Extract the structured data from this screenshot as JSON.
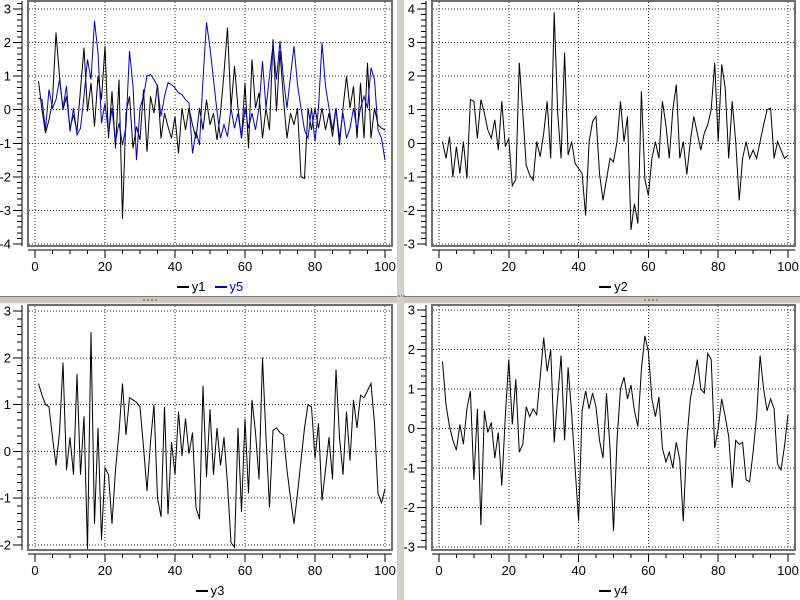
{
  "window": {
    "background": "#ffffff"
  },
  "splitters": {
    "bar_color": "#d5d1c8",
    "grip_color": "#948c80"
  },
  "axis_style": {
    "axis_color": "#000000",
    "grid_color": "#2f2f2f",
    "grid_style": "dotted",
    "canvas_border_color": "#6f6f6f",
    "tick_direction": "outward"
  },
  "chart_data": [
    {
      "id": "tl",
      "type": "line",
      "title": "",
      "xlabel": "",
      "ylabel": "",
      "grid": true,
      "legend_position": "bottom",
      "x_start": 1,
      "x_step": 1,
      "n_points": 100,
      "xlim": [
        -2,
        102
      ],
      "ylim": [
        -4.06,
        3.24
      ],
      "x_ticks": [
        0,
        20,
        40,
        60,
        80,
        100
      ],
      "y_ticks": [
        3,
        2,
        1,
        0,
        -1,
        -2,
        -3,
        -4
      ],
      "x_minor_step": 5,
      "y_minor_divisions": 6,
      "series": [
        {
          "name": "y1",
          "color": "#000000",
          "values": [
            0.85,
            0,
            -0.7,
            -0.3,
            0.25,
            2.3,
            1.0,
            0,
            0.4,
            -0.55,
            -0.15,
            -0.65,
            0.6,
            1.85,
            -0.05,
            0.8,
            -0.5,
            1.0,
            0.3,
            1.9,
            -0.85,
            0.55,
            -1.15,
            0.9,
            -3.25,
            -0.1,
            0.4,
            -1.15,
            -0.5,
            -0.9,
            0.6,
            -1.25,
            0.4,
            -0.1,
            0.75,
            -0.85,
            -0.1,
            -0.5,
            -0.85,
            -0.2,
            -1.3,
            0.05,
            -0.6,
            0.05,
            -0.45,
            -0.85,
            0.05,
            -0.6,
            0.3,
            -0.45,
            -0.1,
            -0.9,
            -0.1,
            1.1,
            2.45,
            0.05,
            1.3,
            0.05,
            -0.85,
            0.8,
            -1.15,
            1.5,
            0.05,
            0.5,
            -0.85,
            0.05,
            -0.6,
            2.1,
            -0.05,
            1.75,
            0.3,
            -0.85,
            -0.1,
            -0.45,
            0.05,
            -2.0,
            -2.05,
            0.05,
            -0.6,
            0.05,
            -0.55,
            0.05,
            -0.6,
            -0.1,
            -0.8,
            0.05,
            -1.05,
            0.05,
            1.0,
            0.05,
            0.7,
            -0.85,
            0.8,
            -0.85,
            1.4,
            -0.85,
            0.05,
            -0.45,
            -0.55,
            -0.6
          ]
        },
        {
          "name": "y5",
          "color": "#0000cc",
          "values": [
            0.35,
            0.3,
            -0.6,
            0.6,
            0.05,
            0.3,
            0.9,
            0.05,
            0.7,
            -0.65,
            0.05,
            -0.75,
            -0.55,
            0.4,
            1.5,
            0.9,
            2.65,
            1.7,
            -0.4,
            0.2,
            -0.7,
            0.05,
            -0.95,
            -0.4,
            -1.05,
            -0.5,
            1.75,
            0.7,
            -1.5,
            0.05,
            0.4,
            1.0,
            1.05,
            0.9,
            0.7,
            -0.2,
            0.4,
            0.8,
            0.75,
            0.65,
            0.5,
            0.45,
            0.3,
            0.2,
            -1.3,
            -0.65,
            -1.05,
            0.9,
            2.6,
            1.85,
            0.9,
            -0.05,
            -0.85,
            -0.45,
            -0.8,
            0.05,
            -0.55,
            -0.1,
            -0.85,
            0.05,
            -0.55,
            -0.1,
            -0.6,
            0.05,
            1.45,
            0.05,
            1.0,
            1.95,
            0.9,
            2.05,
            0.9,
            0.05,
            1.0,
            1.9,
            0.75,
            0.05,
            -0.6,
            -0.85,
            0.05,
            -0.95,
            0.05,
            2.0,
            0.7,
            0.05,
            -0.6,
            0.05,
            -0.85,
            -0.1,
            -0.85,
            -0.55,
            0.05,
            -0.6,
            0.05,
            0.4,
            0.05,
            1.25,
            0.9,
            -0.6,
            -0.85,
            -1.5
          ]
        }
      ]
    },
    {
      "id": "tr",
      "type": "line",
      "title": "",
      "xlabel": "",
      "ylabel": "",
      "grid": true,
      "legend_position": "bottom",
      "x_start": 1,
      "x_step": 1,
      "n_points": 100,
      "xlim": [
        -2,
        102
      ],
      "ylim": [
        -3.06,
        4.24
      ],
      "x_ticks": [
        0,
        20,
        40,
        60,
        80,
        100
      ],
      "y_ticks": [
        4,
        3,
        2,
        1,
        0,
        -1,
        -2,
        -3
      ],
      "x_minor_step": 5,
      "y_minor_divisions": 6,
      "series": [
        {
          "name": "y2",
          "color": "#000000",
          "values": [
            0.05,
            -0.45,
            0.2,
            -1.0,
            -0.1,
            -0.9,
            0.05,
            -1.05,
            1.3,
            1.25,
            0.15,
            1.3,
            0.9,
            0.4,
            0.15,
            0.7,
            -0.2,
            1.25,
            -0.1,
            0.15,
            -1.27,
            -1.08,
            2.4,
            0.9,
            -0.65,
            -0.95,
            -1.1,
            0.05,
            -0.4,
            0.3,
            1.25,
            -0.45,
            3.9,
            0.9,
            -0.45,
            2.7,
            -0.35,
            0.05,
            -0.6,
            -0.75,
            -0.9,
            -2.15,
            0.05,
            0.65,
            0.8,
            -0.9,
            -1.7,
            -1.08,
            -0.45,
            -0.55,
            0.05,
            1.25,
            0.05,
            0.8,
            -2.58,
            -1.8,
            -2.39,
            1.55,
            -1.08,
            -1.56,
            -0.45,
            0.05,
            -0.45,
            1.25,
            0.55,
            -0.45,
            1.0,
            1.75,
            -0.45,
            0.05,
            -0.93,
            0.05,
            0.8,
            0.3,
            -0.2,
            0.3,
            0.55,
            1.0,
            2.4,
            0.05,
            2.35,
            1.65,
            -0.45,
            1.25,
            0.05,
            -1.7,
            -0.45,
            0.05,
            -0.45,
            -0.2,
            -0.45,
            0.05,
            0.55,
            1.0,
            1.05,
            -0.45,
            0.05,
            -0.2,
            -0.45,
            -0.35
          ]
        }
      ]
    },
    {
      "id": "bl",
      "type": "line",
      "title": "",
      "xlabel": "",
      "ylabel": "",
      "grid": true,
      "legend_position": "bottom",
      "x_start": 1,
      "x_step": 1,
      "n_points": 100,
      "xlim": [
        -2,
        102
      ],
      "ylim": [
        -2.11,
        3.13
      ],
      "x_ticks": [
        0,
        20,
        40,
        60,
        80,
        100
      ],
      "y_ticks": [
        3,
        2,
        1,
        0,
        -1,
        -2
      ],
      "x_minor_step": 5,
      "y_minor_divisions": 6,
      "series": [
        {
          "name": "y3",
          "color": "#000000",
          "values": [
            1.45,
            1.2,
            1.0,
            0.95,
            0.3,
            -0.3,
            0.4,
            1.9,
            -0.4,
            0.3,
            -0.5,
            1.65,
            -0.5,
            0.75,
            -2.1,
            2.55,
            -1.55,
            0.5,
            -1.9,
            -0.35,
            -0.5,
            -1.55,
            -0.4,
            0.4,
            1.45,
            0.35,
            1.15,
            1.1,
            1.05,
            0.95,
            0.1,
            -0.85,
            0.2,
            1.0,
            -1.0,
            -1.4,
            0.95,
            -1.35,
            0.2,
            -0.5,
            0.85,
            -0.1,
            0.7,
            -0.05,
            0.4,
            -1.2,
            -1.45,
            1.4,
            -0.55,
            0.9,
            -0.5,
            0.5,
            -0.3,
            0.3,
            -0.7,
            -1.95,
            -2.05,
            0.5,
            -1.3,
            0.7,
            -0.9,
            1.1,
            0.4,
            -0.6,
            2.0,
            0.3,
            -1.2,
            0.45,
            0.5,
            0.4,
            0.35,
            -0.4,
            -1.0,
            -1.55,
            -0.9,
            -0.2,
            0.5,
            1.0,
            0.95,
            -0.15,
            0.6,
            -1.05,
            -0.4,
            0.3,
            -0.6,
            1.75,
            0.3,
            -0.5,
            0.85,
            -0.2,
            1.1,
            0.5,
            1.2,
            1.15,
            1.3,
            1.45,
            0.6,
            -0.9,
            -1.1,
            -0.8
          ]
        }
      ]
    },
    {
      "id": "br",
      "type": "line",
      "title": "",
      "xlabel": "",
      "ylabel": "",
      "grid": true,
      "legend_position": "bottom",
      "x_start": 1,
      "x_step": 1,
      "n_points": 100,
      "xlim": [
        -2,
        102
      ],
      "ylim": [
        -3.08,
        3.13
      ],
      "x_ticks": [
        0,
        20,
        40,
        60,
        80,
        100
      ],
      "y_ticks": [
        3,
        2,
        1,
        0,
        -1,
        -2,
        -3
      ],
      "x_minor_step": 5,
      "y_minor_divisions": 6,
      "series": [
        {
          "name": "y4",
          "color": "#000000",
          "values": [
            1.7,
            0.6,
            0.05,
            -0.3,
            -0.55,
            0.1,
            -0.4,
            0.5,
            0.95,
            -1.3,
            0.5,
            -2.45,
            0.45,
            -0.1,
            0.15,
            -0.75,
            -0.1,
            -1.45,
            0.3,
            1.75,
            0.1,
            1.25,
            -0.6,
            -0.4,
            0.55,
            0.3,
            0.5,
            0.35,
            1.3,
            2.3,
            1.45,
            2.0,
            -0.35,
            0.8,
            1.85,
            -0.3,
            1.55,
            0.4,
            -1.0,
            -2.35,
            0.45,
            0.95,
            0.5,
            0.9,
            0.55,
            -0.3,
            -0.75,
            0.9,
            -0.5,
            -2.6,
            -0.3,
            1.0,
            1.3,
            0.75,
            1.1,
            0.45,
            0.05,
            1.5,
            2.35,
            1.95,
            0.75,
            0.3,
            0.8,
            -0.5,
            -0.85,
            -0.6,
            -1.0,
            -0.35,
            -0.8,
            -2.35,
            -0.3,
            0.75,
            1.2,
            1.75,
            1.0,
            0.9,
            1.9,
            1.75,
            -0.5,
            0.0,
            0.75,
            0.3,
            -0.2,
            -1.5,
            -0.3,
            -0.4,
            -0.35,
            -1.3,
            -1.35,
            -0.6,
            0.3,
            1.85,
            1.0,
            0.45,
            0.75,
            0.5,
            -0.9,
            -1.05,
            -0.45,
            0.35
          ]
        }
      ]
    }
  ]
}
